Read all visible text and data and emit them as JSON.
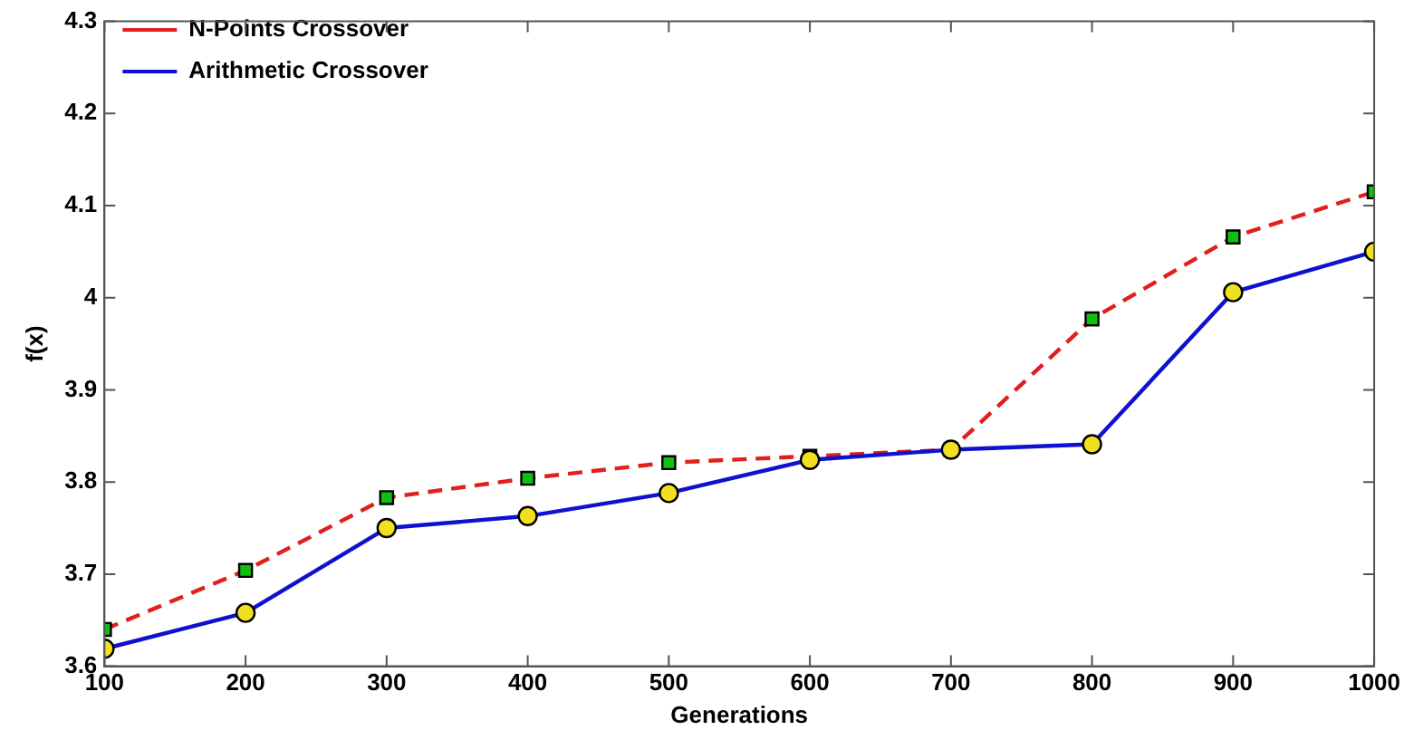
{
  "chart_data": {
    "type": "line",
    "xlabel": "Generations",
    "ylabel": "f(x)",
    "x": [
      100,
      200,
      300,
      400,
      500,
      600,
      700,
      800,
      900,
      1000
    ],
    "xlim": [
      100,
      1000
    ],
    "xticks": [
      100,
      200,
      300,
      400,
      500,
      600,
      700,
      800,
      900,
      1000
    ],
    "ylim": [
      3.6,
      4.3
    ],
    "yticks": [
      3.6,
      3.7,
      3.8,
      3.9,
      4,
      4.1,
      4.2,
      4.3
    ],
    "grid": false,
    "legend": "top left",
    "series": [
      {
        "name": "N-Points Crossover",
        "color": "#e0201c",
        "line_style": "dashed",
        "marker": "square",
        "colors": [
          "#10c010",
          "#10c010",
          "#10c010",
          "#10c010",
          "#10c010",
          "#10c010",
          "#10c010",
          "#10c010",
          "#10c010",
          "#10c010"
        ],
        "values": [
          3.64,
          3.704,
          3.783,
          3.804,
          3.821,
          3.828,
          3.835,
          3.977,
          4.066,
          4.115
        ]
      },
      {
        "name": "Arithmetic Crossover",
        "color": "#1010d0",
        "line_style": "solid",
        "marker": "circle",
        "colors": [
          "#f0e020",
          "#f0e020",
          "#f0e020",
          "#f0e020",
          "#f0e020",
          "#f0e020",
          "#f0e020",
          "#f0e020",
          "#f0e020",
          "#f0e020"
        ],
        "values": [
          3.619,
          3.658,
          3.75,
          3.763,
          3.788,
          3.824,
          3.835,
          3.841,
          4.006,
          4.05
        ]
      }
    ]
  }
}
